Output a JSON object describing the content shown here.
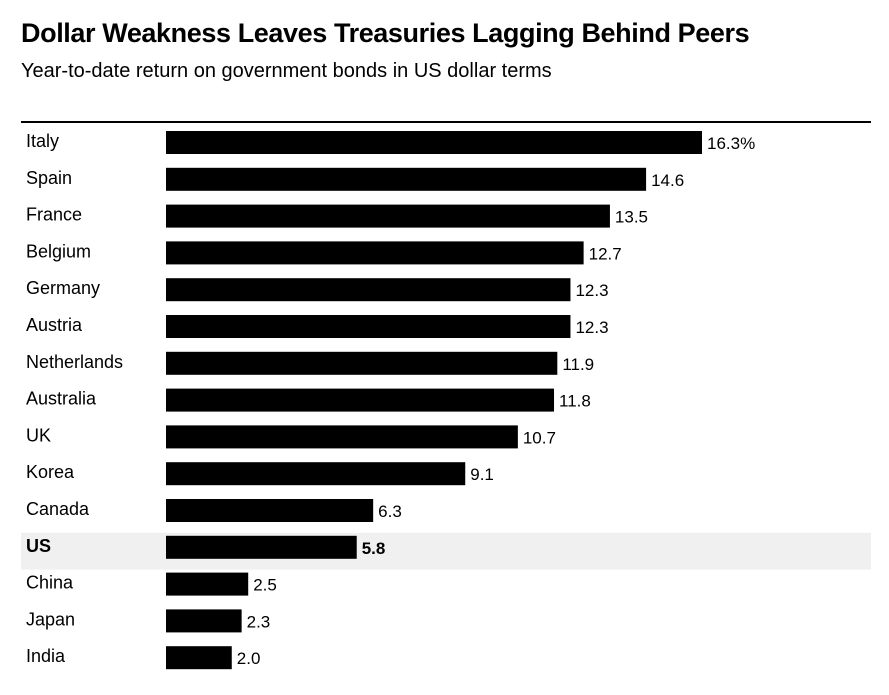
{
  "title": "Dollar Weakness Leaves Treasuries Lagging Behind Peers",
  "subtitle": "Year-to-date return on government bonds in US dollar terms",
  "colors": {
    "bar": "#000000",
    "highlight_row": "#f0f0f0"
  },
  "chart_data": {
    "type": "bar",
    "orientation": "horizontal",
    "title": "Dollar Weakness Leaves Treasuries Lagging Behind Peers",
    "subtitle": "Year-to-date return on government bonds in US dollar terms",
    "categories": [
      "Italy",
      "Spain",
      "France",
      "Belgium",
      "Germany",
      "Austria",
      "Netherlands",
      "Australia",
      "UK",
      "Korea",
      "Canada",
      "US",
      "China",
      "Japan",
      "India"
    ],
    "values": [
      16.3,
      14.6,
      13.5,
      12.7,
      12.3,
      12.3,
      11.9,
      11.8,
      10.7,
      9.1,
      6.3,
      5.8,
      2.5,
      2.3,
      2.0
    ],
    "value_labels": [
      "16.3%",
      "14.6",
      "13.5",
      "12.7",
      "12.3",
      "12.3",
      "11.9",
      "11.8",
      "10.7",
      "9.1",
      "6.3",
      "5.8",
      "2.5",
      "2.3",
      "2.0"
    ],
    "highlight": "US",
    "xlabel": "",
    "ylabel": "",
    "xlim": [
      0,
      16.3
    ],
    "grid": false,
    "legend": "none"
  }
}
